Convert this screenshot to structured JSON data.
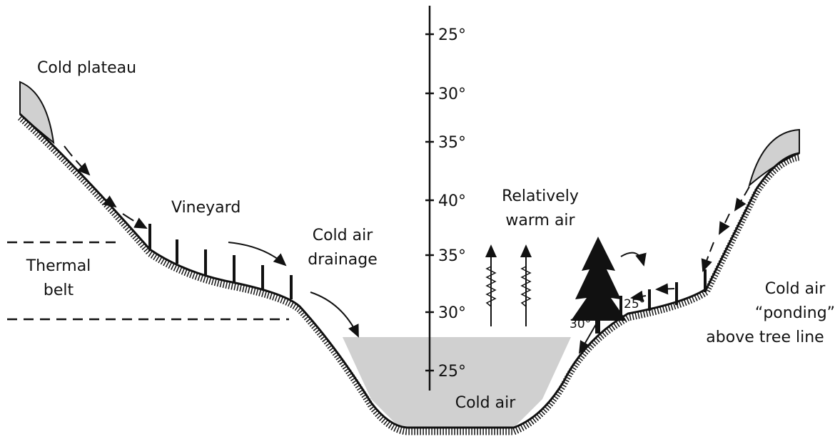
{
  "scale": {
    "ticks": [
      "25°",
      "30°",
      "35°",
      "40°",
      "35°",
      "30°",
      "25°"
    ]
  },
  "labels": {
    "cold_plateau": [
      "Cold plateau"
    ],
    "vineyard": [
      "Vineyard"
    ],
    "thermal_belt": [
      "Thermal",
      "belt"
    ],
    "cold_air_drainage": [
      "Cold air",
      "drainage"
    ],
    "relatively_warm_air": [
      "Relatively",
      "warm air"
    ],
    "cold_air": [
      "Cold air"
    ],
    "ponding": [
      "Cold air",
      "“ponding”",
      "above tree line"
    ],
    "tree_left_temp": [
      "30°"
    ],
    "tree_right_temp": [
      "25°"
    ]
  }
}
